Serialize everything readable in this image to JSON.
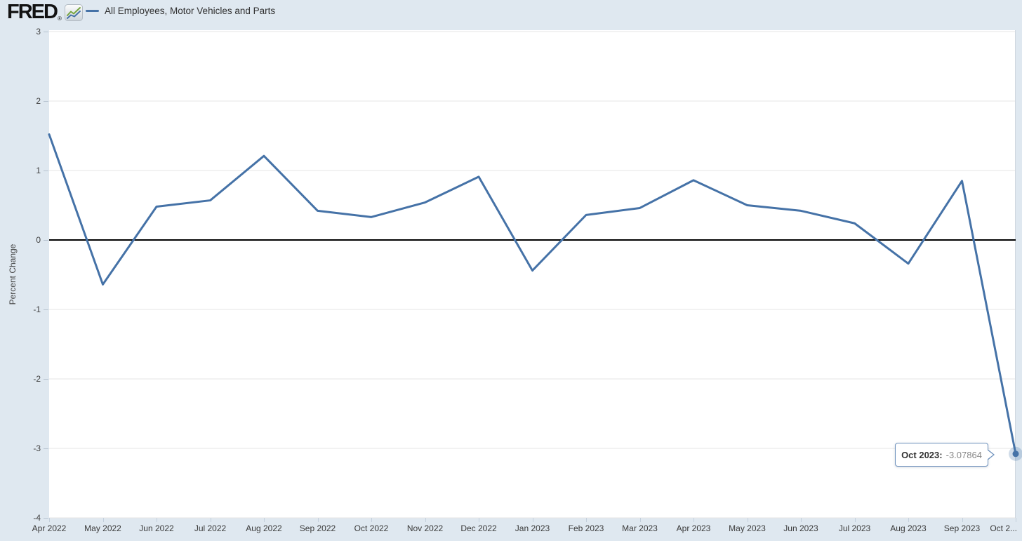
{
  "header": {
    "logo_text": "FRED",
    "registered_mark": "®"
  },
  "legend": {
    "label": "All Employees, Motor Vehicles and Parts",
    "color": "#4572a7"
  },
  "tooltip": {
    "label": "Oct 2023:",
    "value": "-3.07864"
  },
  "chart_data": {
    "type": "line",
    "title": "All Employees, Motor Vehicles and Parts",
    "ylabel": "Percent Change",
    "xlabel": "",
    "ylim": [
      -4,
      3
    ],
    "yticks": [
      3,
      2,
      1,
      0,
      -1,
      -2,
      -3,
      -4
    ],
    "categories": [
      "Apr 2022",
      "May 2022",
      "Jun 2022",
      "Jul 2022",
      "Aug 2022",
      "Sep 2022",
      "Oct 2022",
      "Nov 2022",
      "Dec 2022",
      "Jan 2023",
      "Feb 2023",
      "Mar 2023",
      "Apr 2023",
      "May 2023",
      "Jun 2023",
      "Jul 2023",
      "Aug 2023",
      "Sep 2023",
      "Oct 2023"
    ],
    "xtick_labels": [
      "Apr 2022",
      "May 2022",
      "Jun 2022",
      "Jul 2022",
      "Aug 2022",
      "Sep 2022",
      "Oct 2022",
      "Nov 2022",
      "Dec 2022",
      "Jan 2023",
      "Feb 2023",
      "Mar 2023",
      "Apr 2023",
      "May 2023",
      "Jun 2023",
      "Jul 2023",
      "Aug 2023",
      "Sep 2023",
      "Oct 2..."
    ],
    "values": [
      1.52,
      -0.64,
      0.48,
      0.57,
      1.21,
      0.42,
      0.33,
      0.54,
      0.91,
      -0.44,
      0.36,
      0.46,
      0.86,
      0.5,
      0.42,
      0.24,
      -0.34,
      0.85,
      -3.07864
    ],
    "grid": "horizontal",
    "zero_line": true,
    "legend_position": "top-left",
    "hovered_point": {
      "category": "Oct 2023",
      "value": -3.07864
    },
    "colors": {
      "series": "#4572a7",
      "zero_line": "#000000",
      "gridline": "#e6e6e6",
      "background": "#dfe8f0",
      "plot_background": "#ffffff",
      "crosshair": "#cfd7df",
      "marker_halo": "rgba(69,114,167,0.25)"
    }
  }
}
